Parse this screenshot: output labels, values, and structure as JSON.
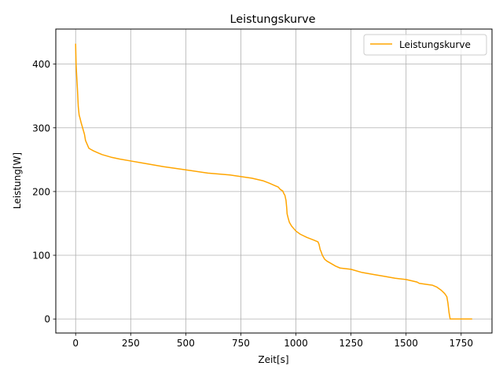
{
  "chart_data": {
    "type": "line",
    "title": "Leistungskurve",
    "xlabel": "Zeit[s]",
    "ylabel": "Leistung[W]",
    "xlim": [
      -90,
      1890
    ],
    "ylim": [
      -22,
      455
    ],
    "xticks": [
      0,
      250,
      500,
      750,
      1000,
      1250,
      1500,
      1750
    ],
    "yticks": [
      0,
      100,
      200,
      300,
      400
    ],
    "grid": true,
    "legend_position": "top-right",
    "series": [
      {
        "name": "Leistungskurve",
        "color": "#ffa500",
        "x": [
          0,
          2,
          5,
          8,
          12,
          16,
          20,
          25,
          30,
          35,
          40,
          45,
          50,
          55,
          60,
          70,
          80,
          100,
          120,
          140,
          160,
          200,
          250,
          300,
          400,
          500,
          600,
          700,
          800,
          850,
          880,
          900,
          920,
          930,
          940,
          945,
          950,
          955,
          958,
          960,
          965,
          970,
          980,
          990,
          1000,
          1020,
          1050,
          1080,
          1100,
          1105,
          1110,
          1115,
          1120,
          1130,
          1140,
          1160,
          1180,
          1200,
          1250,
          1300,
          1350,
          1400,
          1450,
          1500,
          1550,
          1560,
          1600,
          1620,
          1640,
          1660,
          1675,
          1685,
          1690,
          1695,
          1700,
          1750,
          1800
        ],
        "values": [
          432,
          400,
          380,
          362,
          333,
          320,
          315,
          308,
          302,
          296,
          290,
          280,
          276,
          272,
          268,
          266,
          264,
          261,
          258,
          256,
          254,
          251,
          248,
          245,
          239,
          234,
          229,
          226,
          221,
          217,
          213,
          210,
          207,
          203,
          201,
          197,
          194,
          186,
          175,
          165,
          158,
          152,
          146,
          142,
          138,
          133,
          128,
          124,
          121,
          117,
          109,
          105,
          100,
          94,
          91,
          87,
          83,
          80,
          78,
          73,
          70,
          67,
          64,
          62,
          58,
          56,
          54,
          53,
          50,
          45,
          40,
          35,
          25,
          10,
          0,
          0,
          0
        ]
      }
    ]
  }
}
